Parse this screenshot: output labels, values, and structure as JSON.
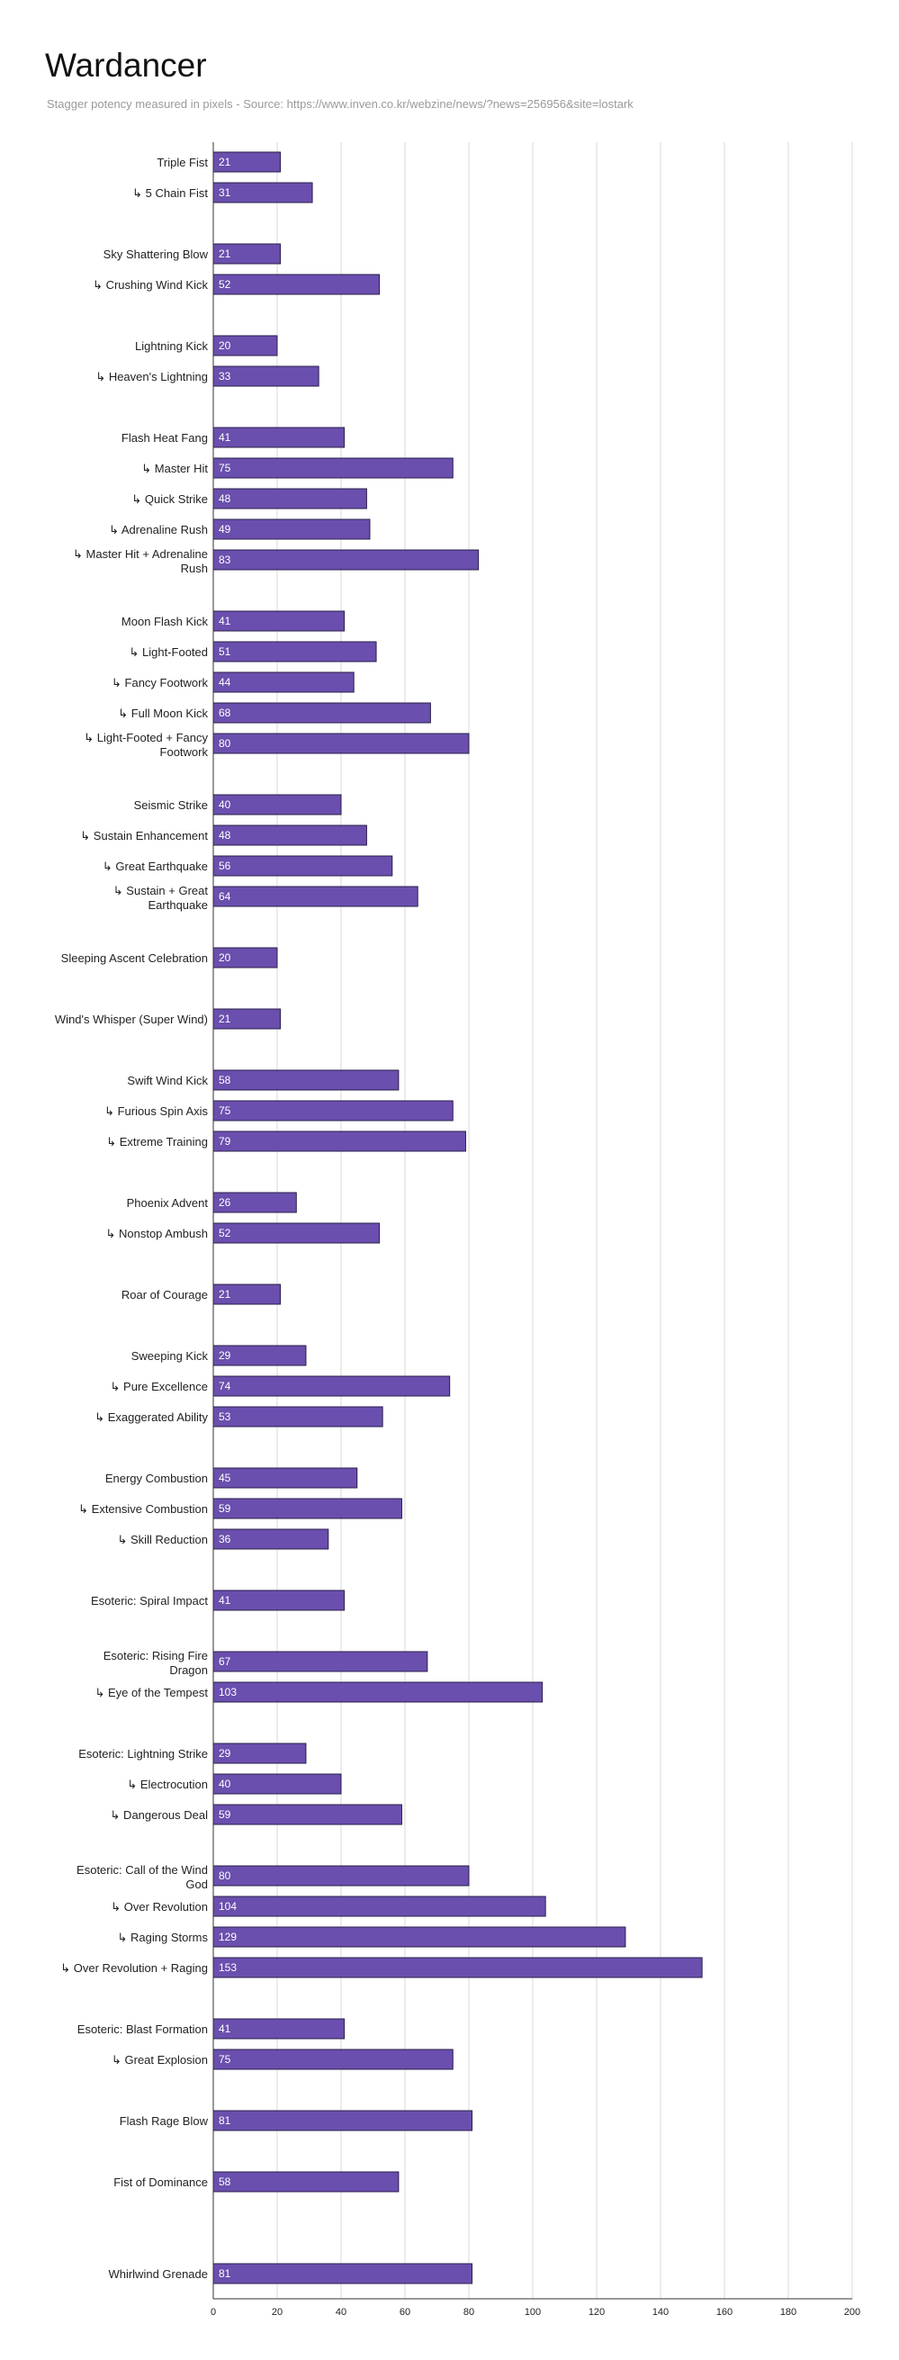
{
  "chart_data": {
    "type": "bar",
    "orientation": "horizontal",
    "title": "Wardancer",
    "subtitle": "Stagger potency measured in pixels - Source: https://www.inven.co.kr/webzine/news/?news=256956&site=lostark",
    "xlim": [
      0,
      200
    ],
    "x_ticks": [
      0,
      20,
      40,
      60,
      80,
      100,
      120,
      140,
      160,
      180,
      200
    ],
    "grid": true,
    "bar_color": "#6a4fae",
    "bar_border_color": "#2a1f4a",
    "categories": [
      "Triple Fist",
      "↳ 5 Chain Fist",
      "",
      "Sky Shattering Blow",
      "↳ Crushing Wind Kick",
      "",
      "Lightning Kick",
      "↳ Heaven's Lightning",
      "",
      "Flash Heat Fang",
      "↳ Master Hit",
      "↳ Quick Strike",
      "↳ Adrenaline Rush",
      "↳ Master Hit + Adrenaline Rush",
      "",
      "Moon Flash Kick",
      "↳ Light-Footed",
      "↳ Fancy Footwork",
      "↳ Full Moon Kick",
      "↳ Light-Footed + Fancy Footwork",
      "",
      "Seismic Strike",
      "↳ Sustain Enhancement",
      "↳ Great Earthquake",
      "↳ Sustain + Great Earthquake",
      "",
      "Sleeping Ascent Celebration",
      "",
      "Wind's Whisper (Super Wind)",
      "",
      "Swift Wind Kick",
      "↳ Furious Spin Axis",
      "↳ Extreme Training",
      "",
      "Phoenix Advent",
      "↳ Nonstop Ambush",
      "",
      "Roar of Courage",
      "",
      "Sweeping Kick",
      "↳ Pure Excellence",
      "↳ Exaggerated Ability",
      "",
      "Energy Combustion",
      "↳ Extensive Combustion",
      "↳ Skill Reduction",
      "",
      "Esoteric: Spiral Impact",
      "",
      "Esoteric: Rising Fire Dragon",
      "↳ Eye of the Tempest",
      "",
      "Esoteric: Lightning Strike",
      "↳ Electrocution",
      "↳ Dangerous Deal",
      "",
      "Esoteric: Call of the Wind God",
      "↳ Over Revolution",
      "↳ Raging Storms",
      "↳ Over Revolution + Raging",
      "",
      "Esoteric: Blast Formation",
      "↳ Great Explosion",
      "",
      "Flash Rage Blow",
      "",
      "Fist of Dominance",
      "",
      "",
      "Whirlwind Grenade"
    ],
    "values": [
      21,
      31,
      null,
      21,
      52,
      null,
      20,
      33,
      null,
      41,
      75,
      48,
      49,
      83,
      null,
      41,
      51,
      44,
      68,
      80,
      null,
      40,
      48,
      56,
      64,
      null,
      20,
      null,
      21,
      null,
      58,
      75,
      79,
      null,
      26,
      52,
      null,
      21,
      null,
      29,
      74,
      53,
      null,
      45,
      59,
      36,
      null,
      41,
      null,
      67,
      103,
      null,
      29,
      40,
      59,
      null,
      80,
      104,
      129,
      153,
      null,
      41,
      75,
      null,
      81,
      null,
      58,
      null,
      null,
      81
    ]
  }
}
